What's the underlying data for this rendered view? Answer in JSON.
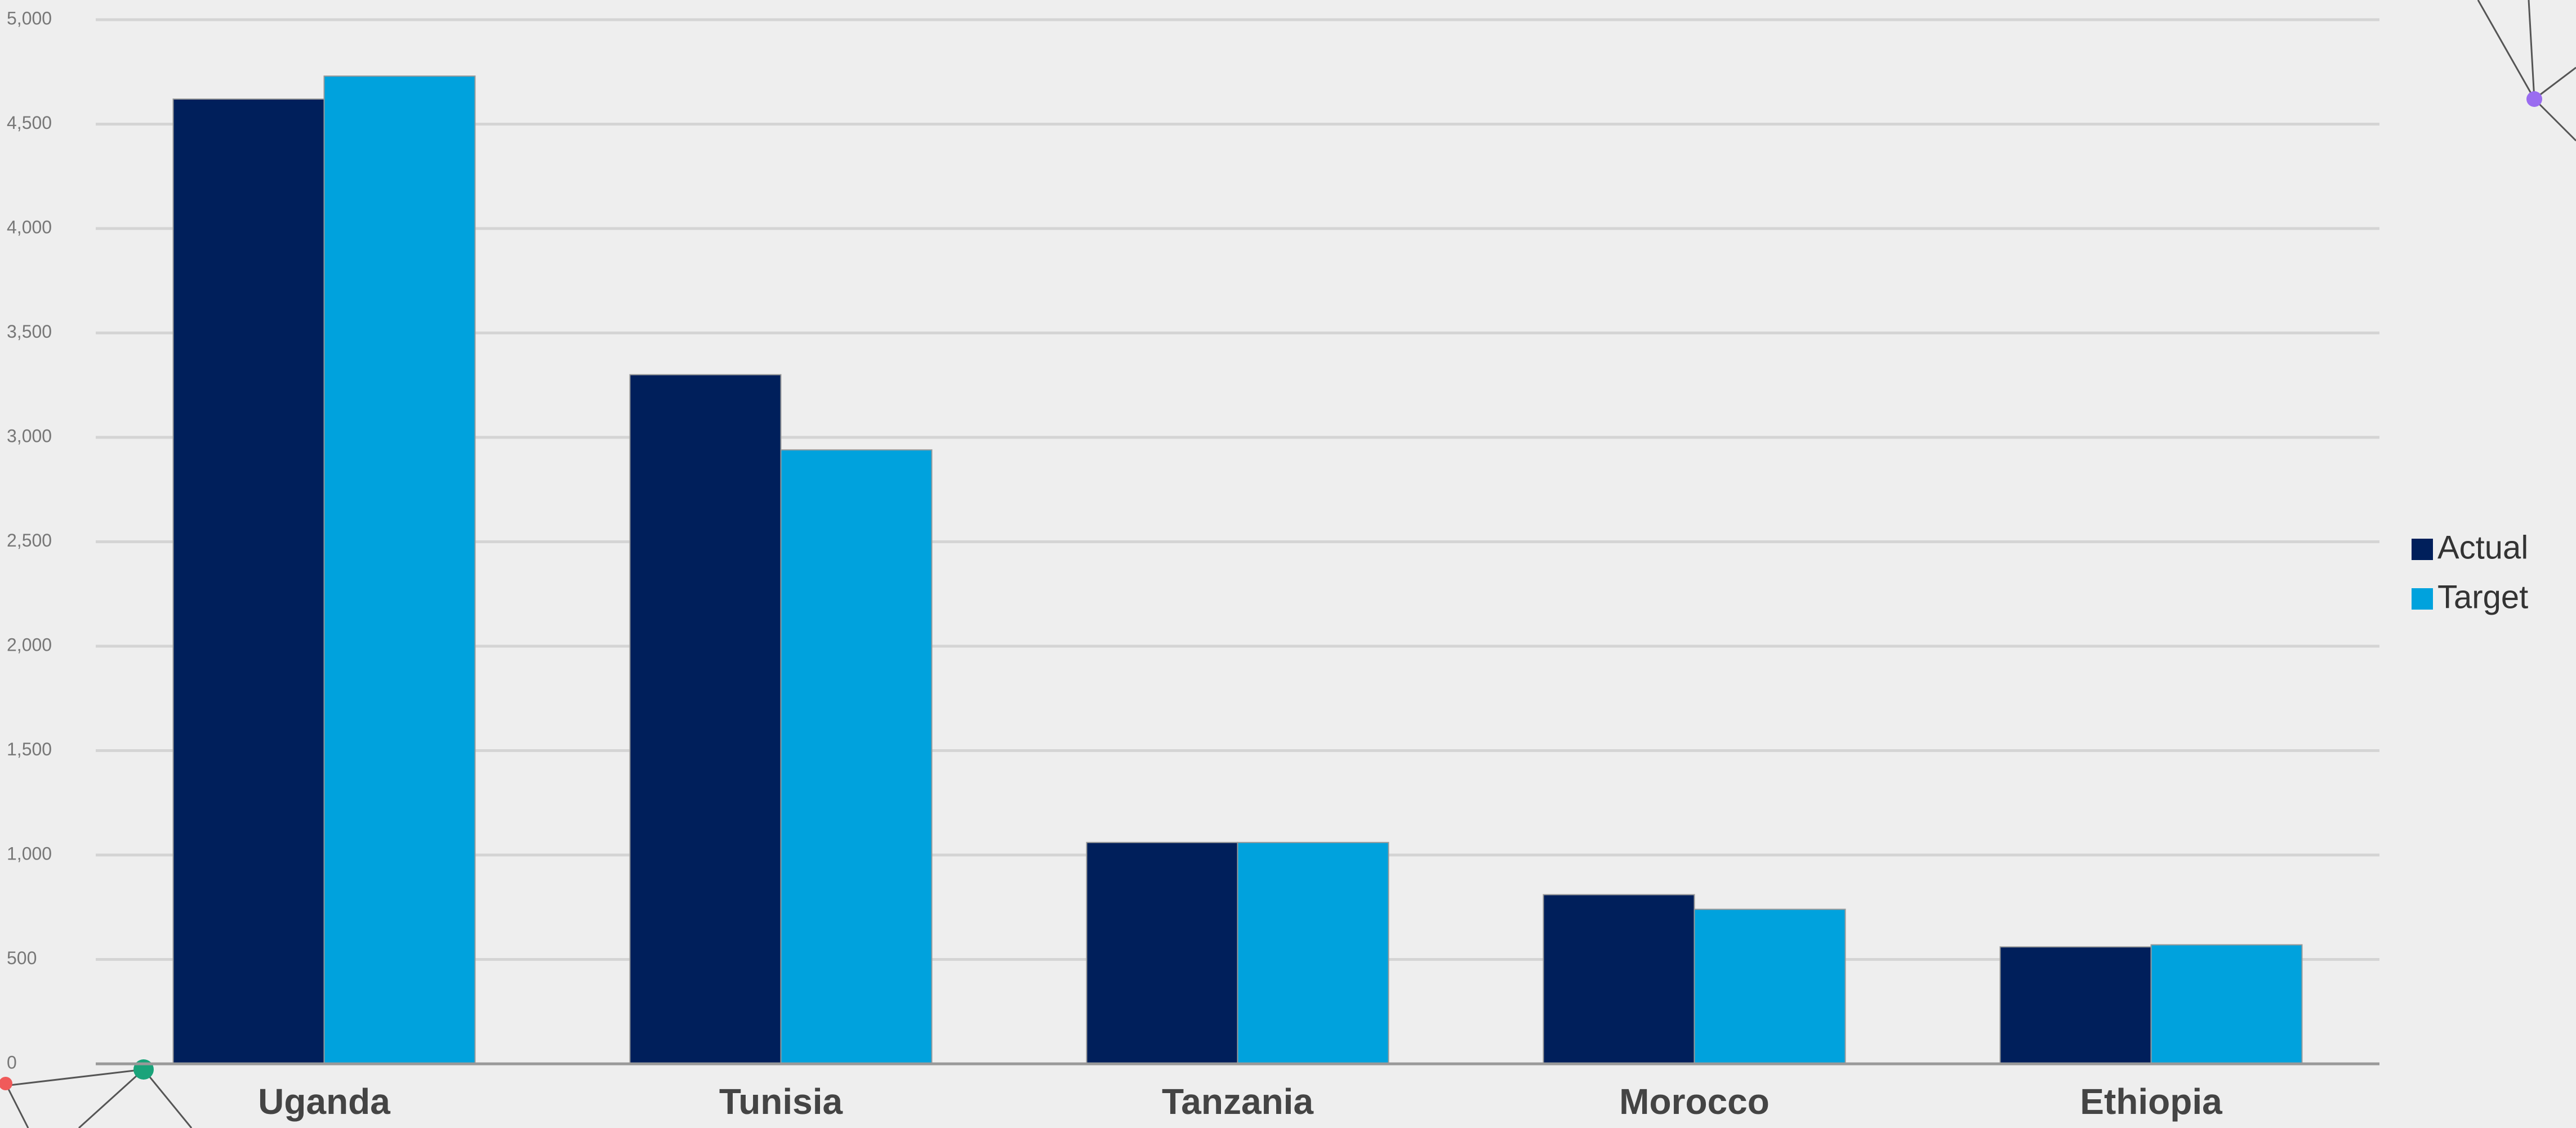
{
  "chart_data": {
    "type": "bar",
    "categories": [
      "Uganda",
      "Tunisia",
      "Tanzania",
      "Morocco",
      "Ethiopia"
    ],
    "series": [
      {
        "name": "Actual",
        "color": "#001f5b",
        "values": [
          4620,
          3300,
          1060,
          810,
          560
        ]
      },
      {
        "name": "Target",
        "color": "#00a2dd",
        "values": [
          4730,
          2940,
          1060,
          740,
          570
        ]
      }
    ],
    "ylim": [
      0,
      5000
    ],
    "yticks": [
      0,
      500,
      {
        "value": 1000,
        "label": "1,000"
      },
      {
        "value": 1500,
        "label": "1,500"
      },
      {
        "value": 2000,
        "label": "2,000"
      },
      {
        "value": 2500,
        "label": "2,500"
      },
      {
        "value": 3000,
        "label": "3,000"
      },
      {
        "value": 3500,
        "label": "3,500"
      },
      {
        "value": 4000,
        "label": "4,000"
      },
      {
        "value": 4500,
        "label": "4,500"
      },
      {
        "value": 5000,
        "label": "5,000"
      }
    ],
    "grid": true,
    "legend": "right"
  }
}
